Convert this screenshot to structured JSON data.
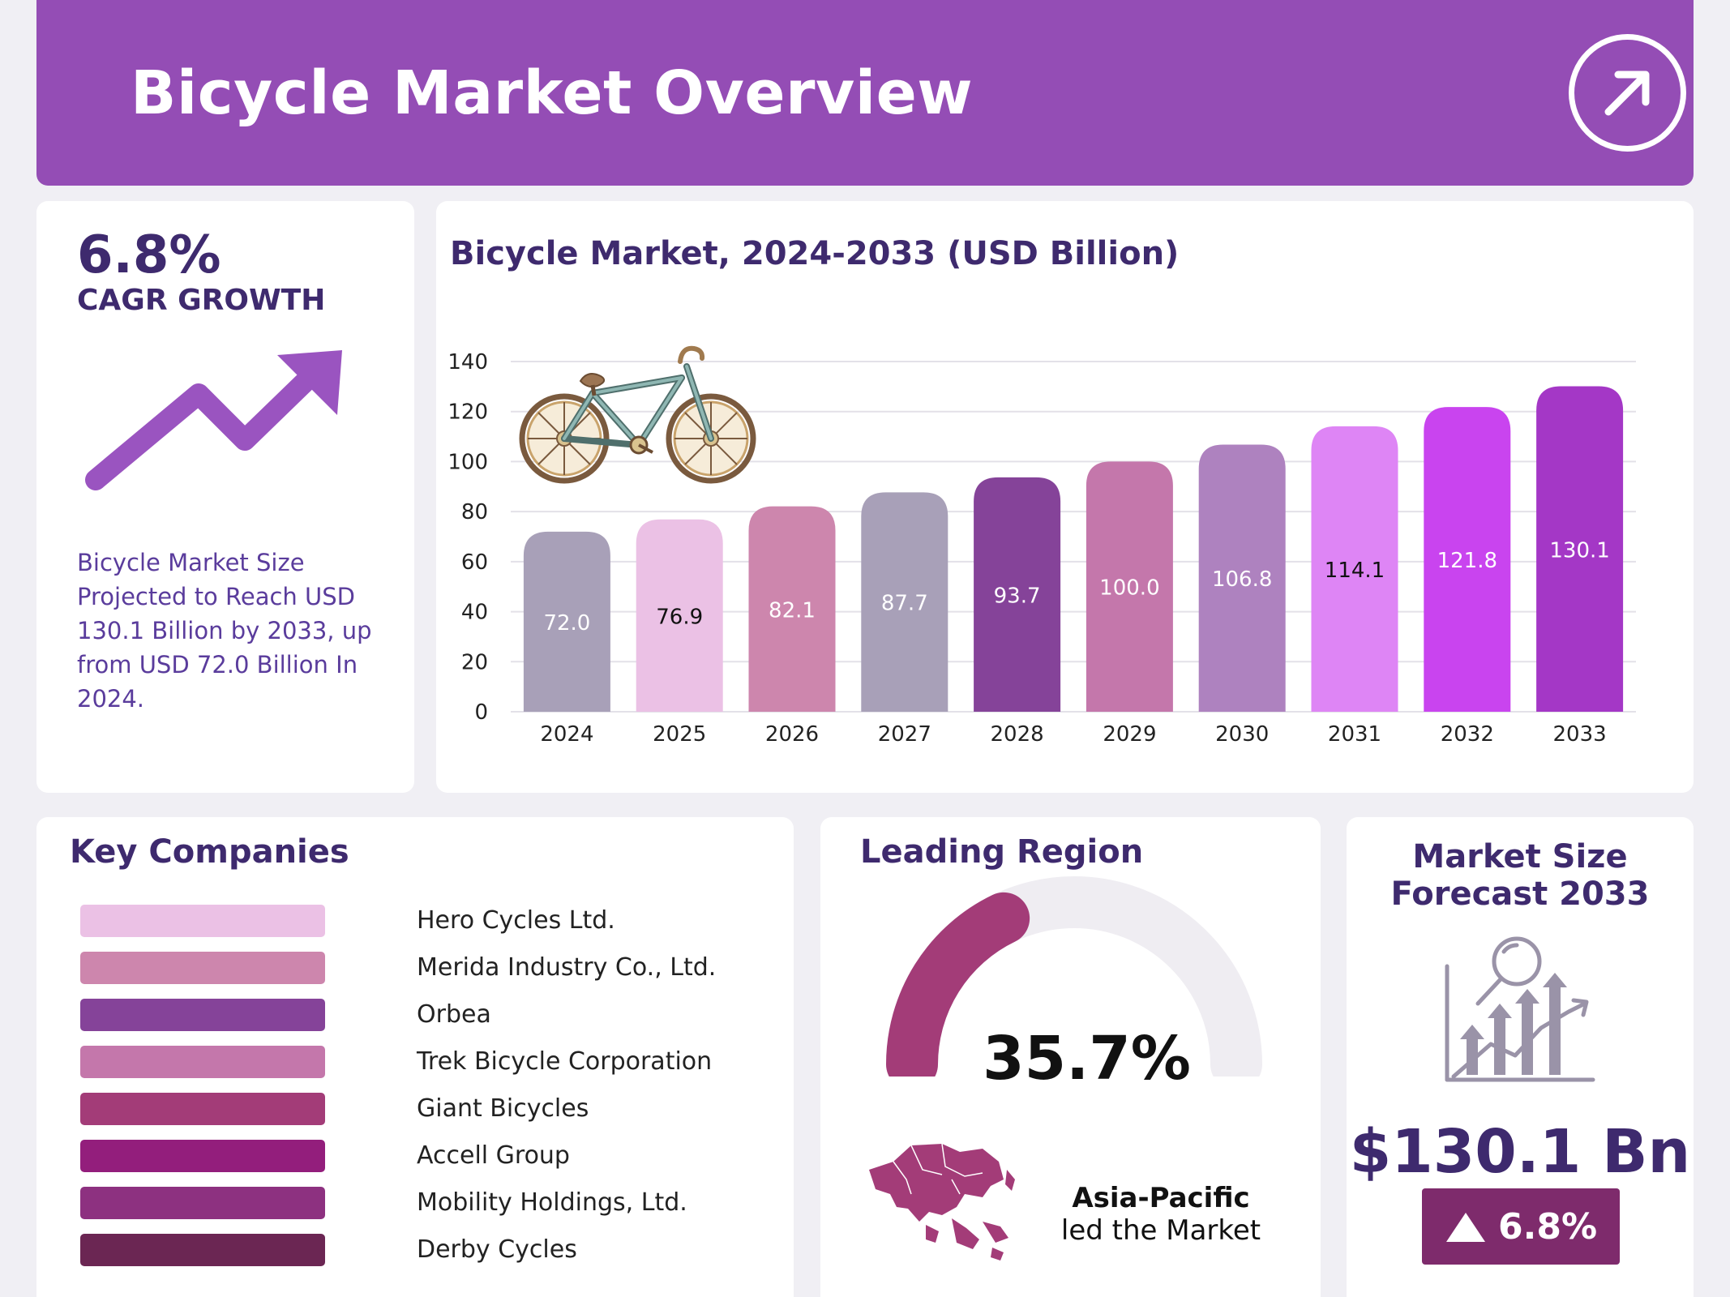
{
  "header": {
    "title": "Bicycle Market Overview",
    "icon": "arrow-up-right-icon"
  },
  "cagr": {
    "value": "6.8%",
    "label": "CAGR GROWTH",
    "description": "Bicycle Market Size Projected to Reach USD 130.1 Billion by 2033, up from USD 72.0 Billion In 2024."
  },
  "chart_data": {
    "type": "bar",
    "title": "Bicycle Market, 2024-2033 (USD Billion)",
    "xlabel": "",
    "ylabel": "",
    "categories": [
      "2024",
      "2025",
      "2026",
      "2027",
      "2028",
      "2029",
      "2030",
      "2031",
      "2032",
      "2033"
    ],
    "values": [
      72.0,
      76.9,
      82.1,
      87.7,
      93.7,
      100.0,
      106.8,
      114.1,
      121.8,
      130.1
    ],
    "value_labels": [
      "72.0",
      "76.9",
      "82.1",
      "87.7",
      "93.7",
      "100.0",
      "106.8",
      "114.1",
      "121.8",
      "130.1"
    ],
    "bar_colors": [
      "#a8a0b8",
      "#ebc1e5",
      "#cd86ad",
      "#a8a0b8",
      "#854399",
      "#c477ab",
      "#ae82bf",
      "#de85f5",
      "#c944ef",
      "#a437c6"
    ],
    "label_colors": [
      "#ffffff",
      "#111111",
      "#ffffff",
      "#ffffff",
      "#ffffff",
      "#ffffff",
      "#ffffff",
      "#111111",
      "#ffffff",
      "#ffffff"
    ],
    "ylim": [
      0,
      140
    ],
    "yticks": [
      0,
      20,
      40,
      60,
      80,
      100,
      120,
      140
    ],
    "grid": true,
    "legend": "none"
  },
  "companies": {
    "title": "Key Companies",
    "items": [
      {
        "name": "Hero Cycles Ltd.",
        "color": "#ebc1e5"
      },
      {
        "name": "Merida Industry Co., Ltd.",
        "color": "#cd86ad"
      },
      {
        "name": "Orbea",
        "color": "#854399"
      },
      {
        "name": "Trek Bicycle Corporation",
        "color": "#c477ab"
      },
      {
        "name": "Giant Bicycles",
        "color": "#a33c78"
      },
      {
        "name": "Accell Group",
        "color": "#931e7c"
      },
      {
        "name": "Mobility Holdings, Ltd.",
        "color": "#8d3180"
      },
      {
        "name": "Derby Cycles",
        "color": "#6b2653"
      }
    ]
  },
  "region": {
    "title": "Leading Region",
    "share_percent": 35.7,
    "share_label": "35.7%",
    "name": "Asia-Pacific",
    "subtitle": "led the Market",
    "gauge_color": "#a33c78",
    "track_color": "#efedf2"
  },
  "forecast": {
    "title": "Market Size Forecast 2033",
    "value": "$130.1 Bn",
    "growth": "6.8%",
    "icon": "analytics-growth-icon"
  },
  "colors": {
    "header_bg": "#944db5",
    "accent_dark": "#3e2a6e",
    "arrow_purple": "#9a54c0",
    "badge_bg": "#7e2b6c"
  }
}
